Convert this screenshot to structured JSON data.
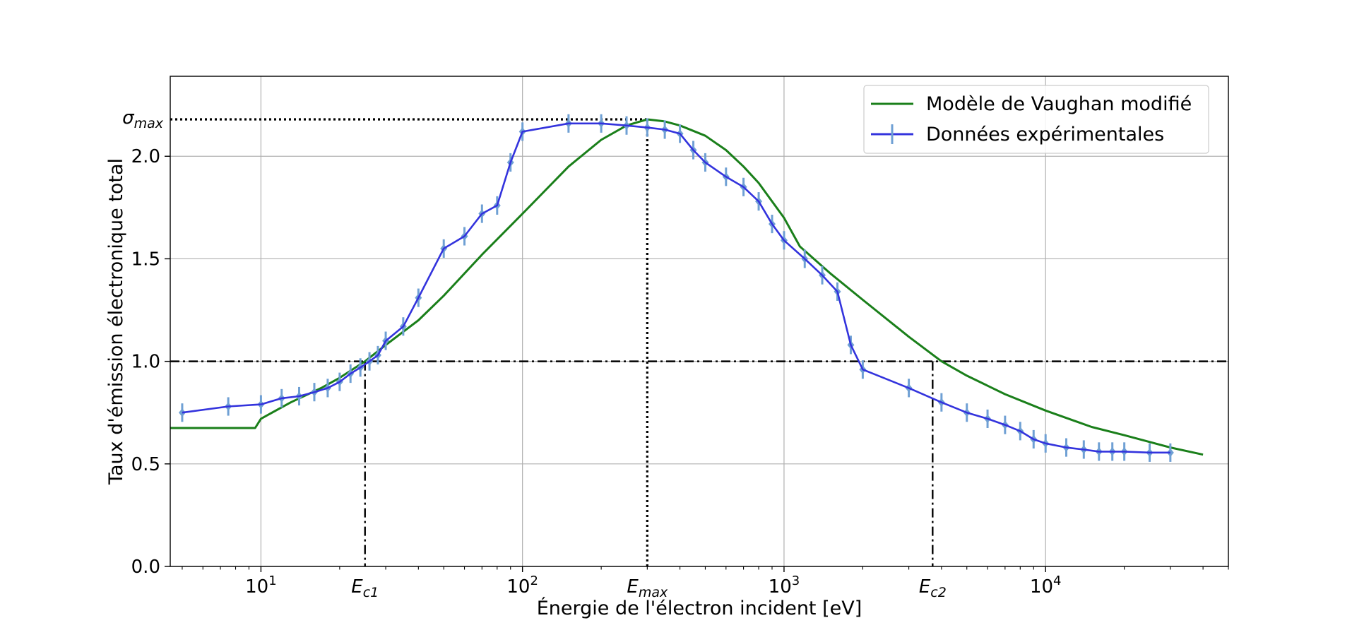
{
  "chart_data": {
    "type": "line",
    "title": "",
    "xlabel": "Énergie de l'électron incident [eV]",
    "ylabel": "Taux d'émission électronique total",
    "xscale": "log",
    "xlim": [
      4.5,
      50000
    ],
    "ylim": [
      0,
      2.39
    ],
    "grid": true,
    "legend_position": "top-right",
    "y_ticks": [
      0.0,
      0.5,
      1.0,
      1.5,
      2.0
    ],
    "y_tick_labels": [
      "0.0",
      "0.5",
      "1.0",
      "1.5",
      "2.0"
    ],
    "x_ticks": [
      {
        "value": 10,
        "base": "10",
        "exp": "1"
      },
      {
        "value": 100,
        "base": "10",
        "exp": "2"
      },
      {
        "value": 1000,
        "base": "10",
        "exp": "3"
      },
      {
        "value": 10000,
        "base": "10",
        "exp": "4"
      }
    ],
    "reference_lines": {
      "sigma_max": {
        "y": 2.18,
        "label_main": "σ",
        "label_sub": "max"
      },
      "unity": {
        "y": 1.0
      },
      "E_c1": {
        "x": 25,
        "label_main": "E",
        "label_sub": "c1"
      },
      "E_max": {
        "x": 300,
        "label_main": "E",
        "label_sub": "max"
      },
      "E_c2": {
        "x": 3700,
        "label_main": "E",
        "label_sub": "c2"
      }
    },
    "series": [
      {
        "name": "Modèle de Vaughan modifié",
        "kind": "model",
        "color": "#1a7f1a",
        "x": [
          4.5,
          6,
          8,
          9.5,
          10,
          13,
          17,
          20,
          25,
          30,
          40,
          50,
          70,
          100,
          150,
          200,
          250,
          300,
          350,
          400,
          500,
          600,
          700,
          800,
          1000,
          1150,
          1500,
          2000,
          3000,
          4000,
          5000,
          7000,
          10000,
          15000,
          20000,
          30000,
          40000
        ],
        "y": [
          0.675,
          0.675,
          0.675,
          0.675,
          0.72,
          0.8,
          0.87,
          0.92,
          1.0,
          1.08,
          1.2,
          1.32,
          1.52,
          1.72,
          1.95,
          2.08,
          2.15,
          2.18,
          2.17,
          2.15,
          2.1,
          2.03,
          1.95,
          1.87,
          1.7,
          1.56,
          1.43,
          1.3,
          1.12,
          1.0,
          0.93,
          0.84,
          0.76,
          0.68,
          0.64,
          0.58,
          0.545
        ]
      },
      {
        "name": "Données expérimentales",
        "kind": "data",
        "color": "#3333dd",
        "marker_color": "#6fa0d4",
        "error": 0.045,
        "x": [
          5,
          7.5,
          10,
          12,
          14,
          16,
          18,
          20,
          22,
          24,
          26,
          28,
          30,
          35,
          40,
          50,
          60,
          70,
          80,
          90,
          100,
          150,
          200,
          250,
          300,
          350,
          400,
          450,
          500,
          600,
          700,
          800,
          900,
          1000,
          1200,
          1400,
          1600,
          1800,
          2000,
          3000,
          4000,
          5000,
          6000,
          7000,
          8000,
          9000,
          10000,
          12000,
          14000,
          16000,
          18000,
          20000,
          25000,
          30000
        ],
        "y": [
          0.75,
          0.78,
          0.79,
          0.82,
          0.83,
          0.85,
          0.87,
          0.9,
          0.94,
          0.97,
          1.0,
          1.03,
          1.1,
          1.17,
          1.31,
          1.55,
          1.61,
          1.72,
          1.76,
          1.97,
          2.12,
          2.16,
          2.16,
          2.15,
          2.14,
          2.13,
          2.11,
          2.03,
          1.97,
          1.9,
          1.85,
          1.78,
          1.67,
          1.59,
          1.5,
          1.42,
          1.34,
          1.08,
          0.96,
          0.87,
          0.8,
          0.75,
          0.72,
          0.69,
          0.66,
          0.62,
          0.6,
          0.58,
          0.57,
          0.56,
          0.56,
          0.56,
          0.555,
          0.555
        ]
      }
    ]
  }
}
